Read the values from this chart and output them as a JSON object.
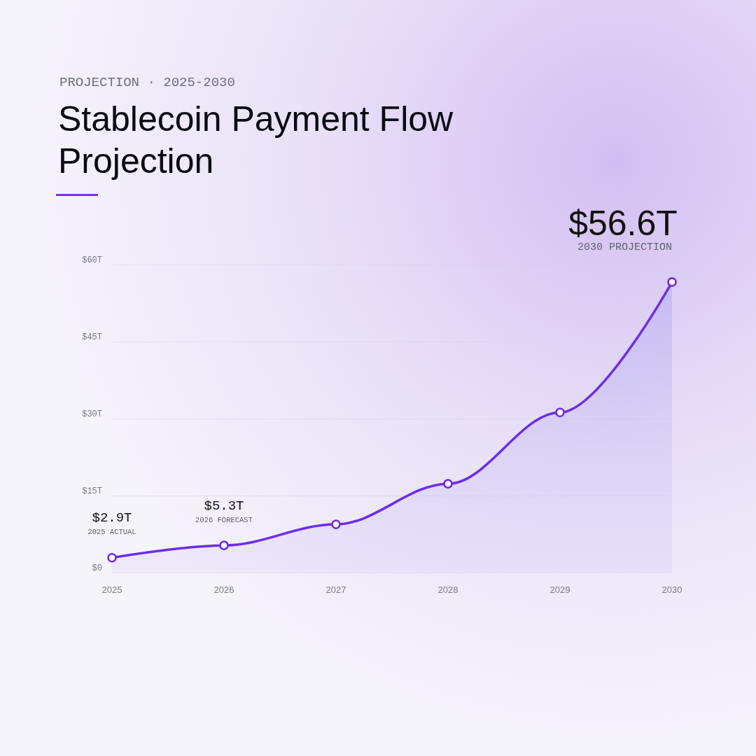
{
  "chart_data": {
    "type": "area",
    "subtitle": "PROJECTION · 2025-2030",
    "title": "Stablecoin Payment Flow Projection",
    "categories": [
      "2025",
      "2026",
      "2027",
      "2028",
      "2029",
      "2030"
    ],
    "values": [
      2.9,
      5.3,
      9.4,
      17.3,
      31.2,
      56.6
    ],
    "color": "#6b2ee8",
    "value_labels": [
      "$2.9T",
      "$5.3T",
      null,
      null,
      null,
      "$56.6T"
    ],
    "annotations": [
      {
        "text": "2025 ACTUAL",
        "x": "2025",
        "y": 2.9
      },
      {
        "text": "2026 FORECAST",
        "x": "2026",
        "y": 5.3
      },
      {
        "text": "2030 PROJECTION",
        "x": "2030",
        "y": 56.6
      }
    ],
    "ylim": [
      0,
      60
    ],
    "yticks": [
      {
        "value": 0,
        "label": "$0"
      },
      {
        "value": 15,
        "label": "$15T"
      },
      {
        "value": 30,
        "label": "$30T"
      },
      {
        "value": 45,
        "label": "$45T"
      },
      {
        "value": 60,
        "label": "$60T"
      }
    ],
    "grid": "y",
    "marker": "circle",
    "line_style": "solid"
  }
}
